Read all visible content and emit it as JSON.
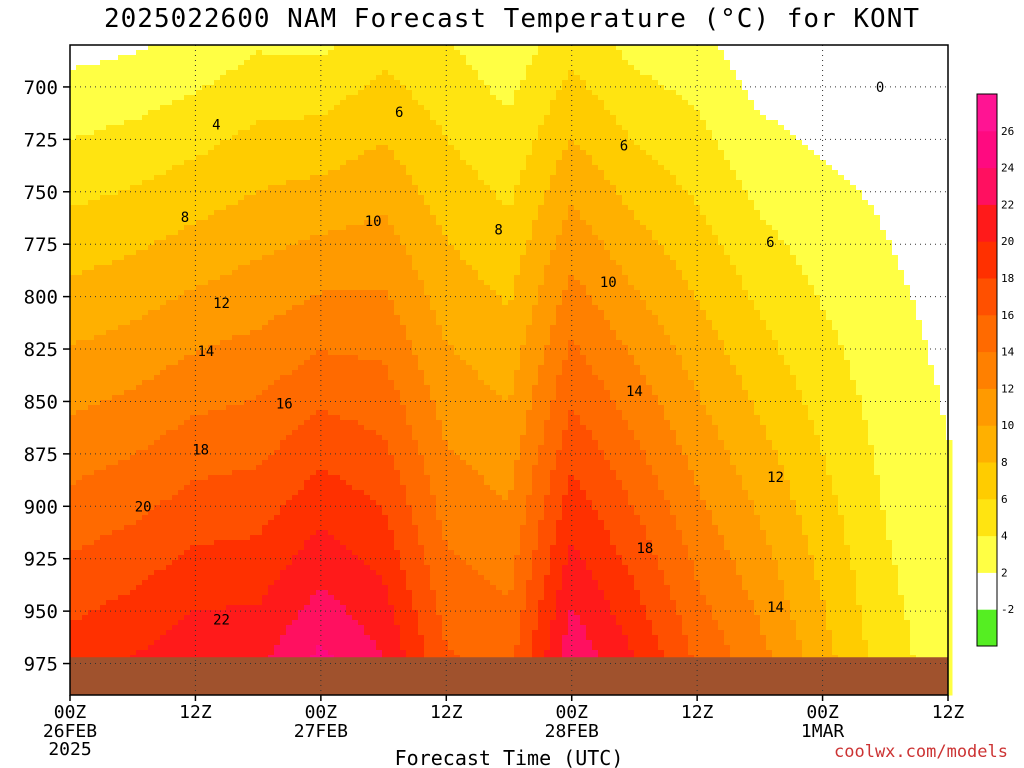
{
  "chart_data": {
    "type": "contour",
    "title": "2025022600 NAM Forecast Temperature (°C) for KONT",
    "xlabel": "Forecast Time (UTC)",
    "ylabel": "",
    "ylim": [
      680,
      990
    ],
    "y_ticks": [
      700,
      725,
      750,
      775,
      800,
      825,
      850,
      875,
      900,
      925,
      950,
      975
    ],
    "y_tick_labels": [
      "700",
      "725",
      "750",
      "775",
      "800",
      "825",
      "850",
      "875",
      "900",
      "925",
      "950",
      "975"
    ],
    "x_ticks": [
      {
        "hour": 0,
        "top": "00Z",
        "mid": "26FEB",
        "bot": "2025"
      },
      {
        "hour": 12,
        "top": "12Z",
        "mid": "",
        "bot": ""
      },
      {
        "hour": 24,
        "top": "00Z",
        "mid": "27FEB",
        "bot": ""
      },
      {
        "hour": 36,
        "top": "12Z",
        "mid": "",
        "bot": ""
      },
      {
        "hour": 48,
        "top": "00Z",
        "mid": "28FEB",
        "bot": ""
      },
      {
        "hour": 60,
        "top": "12Z",
        "mid": "",
        "bot": ""
      },
      {
        "hour": 72,
        "top": "00Z",
        "mid": "1MAR",
        "bot": ""
      },
      {
        "hour": 84,
        "top": "12Z",
        "mid": "",
        "bot": ""
      }
    ],
    "grid": true,
    "colorbar": {
      "levels": [
        -2,
        2,
        4,
        6,
        8,
        10,
        12,
        14,
        16,
        18,
        20,
        22,
        24,
        26
      ],
      "tick_labels": [
        "-2",
        "2",
        "4",
        "6",
        "8",
        "10",
        "12",
        "14",
        "16",
        "18",
        "20",
        "22",
        "24",
        "26"
      ],
      "colors": [
        "#55ee22",
        "#ffffff",
        "#ffff44",
        "#ffe411",
        "#ffcc00",
        "#ffb000",
        "#ff9a00",
        "#ff8000",
        "#ff6a00",
        "#ff5000",
        "#ff3000",
        "#ff1a1a",
        "#ff1060",
        "#ff0a80",
        "#ff1493"
      ]
    },
    "contour_labels": [
      {
        "text": "0",
        "hour": 77.5,
        "p": 700
      },
      {
        "text": "4",
        "hour": 14,
        "p": 718
      },
      {
        "text": "6",
        "hour": 31.5,
        "p": 712
      },
      {
        "text": "6",
        "hour": 53,
        "p": 728
      },
      {
        "text": "6",
        "hour": 67,
        "p": 774
      },
      {
        "text": "8",
        "hour": 11,
        "p": 762
      },
      {
        "text": "8",
        "hour": 41,
        "p": 768
      },
      {
        "text": "10",
        "hour": 29,
        "p": 764
      },
      {
        "text": "10",
        "hour": 51.5,
        "p": 793
      },
      {
        "text": "12",
        "hour": 14.5,
        "p": 803
      },
      {
        "text": "12",
        "hour": 67.5,
        "p": 886
      },
      {
        "text": "14",
        "hour": 13,
        "p": 826
      },
      {
        "text": "14",
        "hour": 54,
        "p": 845
      },
      {
        "text": "14",
        "hour": 67.5,
        "p": 948
      },
      {
        "text": "16",
        "hour": 20.5,
        "p": 851
      },
      {
        "text": "18",
        "hour": 12.5,
        "p": 873
      },
      {
        "text": "18",
        "hour": 55,
        "p": 920
      },
      {
        "text": "20",
        "hour": 7,
        "p": 900
      },
      {
        "text": "22",
        "hour": 14.5,
        "p": 954
      }
    ],
    "temperature_profile": {
      "hours": [
        0,
        6,
        12,
        18,
        24,
        30,
        36,
        42,
        48,
        54,
        60,
        66,
        72,
        78,
        84
      ],
      "temp_700mb": [
        2.5,
        3.0,
        3.8,
        5.0,
        5.0,
        6.5,
        5.0,
        3.5,
        6.5,
        4.5,
        3.5,
        1.5,
        1.0,
        1.0,
        0.5
      ],
      "temp_980mb": [
        19.5,
        20.5,
        22.0,
        22.0,
        25.0,
        22.5,
        16.5,
        15.5,
        24.0,
        20.5,
        16.0,
        13.0,
        9.0,
        5.0,
        3.0
      ]
    }
  },
  "credit": "coolwx.com/models"
}
